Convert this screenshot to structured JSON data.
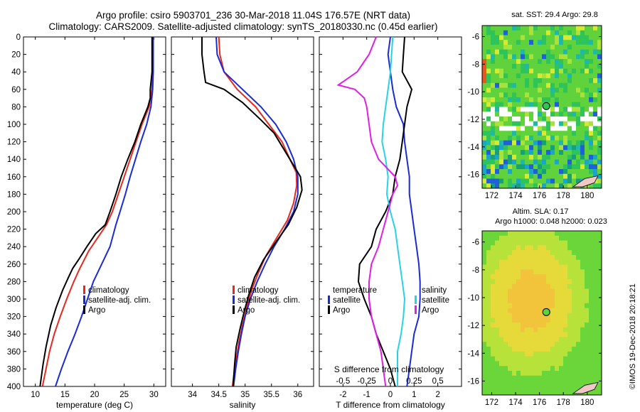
{
  "header": {
    "line1": "Argo profile: csiro 5903701_236 30-Mar-2018 11.04S 176.57E (NRT data)",
    "line2": "Climatology: CARS2009. Satellite-adjusted climatology: synTS_20180330.nc (0.45d earlier)"
  },
  "colors": {
    "climatology": "#e8281e",
    "satellite": "#1a2ad6",
    "argo": "#000000",
    "magenta": "#e11ee6",
    "cyan": "#28d2e6"
  },
  "depth_axis": {
    "ticks": [
      0,
      20,
      40,
      60,
      80,
      100,
      120,
      140,
      160,
      180,
      200,
      220,
      240,
      260,
      280,
      300,
      320,
      340,
      360,
      380,
      400
    ],
    "range": [
      0,
      400
    ]
  },
  "chart_data": [
    {
      "id": "temperature",
      "type": "line",
      "xlabel": "temperature (deg C)",
      "ylabel": "",
      "xlim": [
        8,
        32
      ],
      "ylim": [
        400,
        0
      ],
      "xticks": [
        10,
        15,
        20,
        25,
        30
      ],
      "legend": [
        "climatology",
        "satellite-adj. clim.",
        "Argo"
      ],
      "series": [
        {
          "name": "climatology",
          "color_key": "climatology",
          "points": [
            [
              29.8,
              0
            ],
            [
              29.8,
              40
            ],
            [
              29.7,
              60
            ],
            [
              29.2,
              80
            ],
            [
              28,
              100
            ],
            [
              27,
              120
            ],
            [
              26,
              140
            ],
            [
              25,
              160
            ],
            [
              24,
              180
            ],
            [
              23,
              200
            ],
            [
              22,
              215
            ],
            [
              20.5,
              230
            ],
            [
              19,
              245
            ],
            [
              17.5,
              265
            ],
            [
              16.5,
              280
            ],
            [
              15.3,
              300
            ],
            [
              14.2,
              320
            ],
            [
              13.2,
              340
            ],
            [
              12.4,
              360
            ],
            [
              11.8,
              380
            ],
            [
              11.2,
              400
            ]
          ]
        },
        {
          "name": "satellite-adj. clim.",
          "color_key": "satellite",
          "points": [
            [
              29.9,
              0
            ],
            [
              29.9,
              40
            ],
            [
              29.8,
              60
            ],
            [
              29.5,
              80
            ],
            [
              28.8,
              100
            ],
            [
              27.8,
              120
            ],
            [
              26.9,
              140
            ],
            [
              26,
              160
            ],
            [
              25.2,
              180
            ],
            [
              24.3,
              200
            ],
            [
              23.6,
              215
            ],
            [
              22.6,
              240
            ],
            [
              21.2,
              260
            ],
            [
              19.8,
              280
            ],
            [
              18.8,
              300
            ],
            [
              17.8,
              320
            ],
            [
              16.7,
              340
            ],
            [
              15.5,
              360
            ],
            [
              14.4,
              380
            ],
            [
              13.4,
              400
            ]
          ]
        },
        {
          "name": "Argo",
          "color_key": "argo",
          "points": [
            [
              29.7,
              0
            ],
            [
              29.7,
              40
            ],
            [
              29.4,
              60
            ],
            [
              29.4,
              70
            ],
            [
              29,
              80
            ],
            [
              27.8,
              100
            ],
            [
              26.8,
              120
            ],
            [
              25.6,
              140
            ],
            [
              24.5,
              160
            ],
            [
              23.6,
              180
            ],
            [
              22.6,
              200
            ],
            [
              21.8,
              215
            ],
            [
              20.2,
              225
            ],
            [
              18.7,
              240
            ],
            [
              17.3,
              255
            ],
            [
              16.3,
              265
            ],
            [
              15.6,
              275
            ],
            [
              14.6,
              290
            ],
            [
              13.5,
              310
            ],
            [
              12.6,
              330
            ],
            [
              11.8,
              355
            ],
            [
              11.3,
              375
            ],
            [
              10.8,
              400
            ]
          ]
        }
      ]
    },
    {
      "id": "salinity",
      "type": "line",
      "xlabel": "salinity",
      "ylabel": "",
      "xlim": [
        33.6,
        36.3
      ],
      "ylim": [
        400,
        0
      ],
      "xticks": [
        34,
        34.5,
        35,
        35.5,
        36
      ],
      "legend": [
        "climatology",
        "satellite-adj. clim.",
        "Argo"
      ],
      "series": [
        {
          "name": "climatology",
          "color_key": "climatology",
          "points": [
            [
              34.5,
              0
            ],
            [
              34.52,
              20
            ],
            [
              34.6,
              40
            ],
            [
              34.85,
              60
            ],
            [
              35.2,
              80
            ],
            [
              35.45,
              100
            ],
            [
              35.7,
              120
            ],
            [
              35.85,
              140
            ],
            [
              35.97,
              155
            ],
            [
              35.98,
              170
            ],
            [
              35.92,
              190
            ],
            [
              35.8,
              210
            ],
            [
              35.6,
              230
            ],
            [
              35.4,
              250
            ],
            [
              35.25,
              270
            ],
            [
              35.12,
              290
            ],
            [
              35.03,
              310
            ],
            [
              34.95,
              330
            ],
            [
              34.88,
              350
            ],
            [
              34.83,
              370
            ],
            [
              34.78,
              390
            ],
            [
              34.76,
              400
            ]
          ]
        },
        {
          "name": "satellite-adj. clim.",
          "color_key": "satellite",
          "points": [
            [
              34.45,
              0
            ],
            [
              34.47,
              20
            ],
            [
              34.6,
              40
            ],
            [
              34.95,
              60
            ],
            [
              35.3,
              80
            ],
            [
              35.58,
              100
            ],
            [
              35.78,
              120
            ],
            [
              35.92,
              140
            ],
            [
              36.0,
              160
            ],
            [
              36.0,
              180
            ],
            [
              35.92,
              200
            ],
            [
              35.75,
              220
            ],
            [
              35.55,
              240
            ],
            [
              35.38,
              260
            ],
            [
              35.23,
              280
            ],
            [
              35.1,
              300
            ],
            [
              35.0,
              320
            ],
            [
              34.93,
              340
            ],
            [
              34.87,
              360
            ],
            [
              34.82,
              380
            ],
            [
              34.78,
              400
            ]
          ]
        },
        {
          "name": "Argo",
          "color_key": "argo",
          "points": [
            [
              34.18,
              0
            ],
            [
              34.18,
              20
            ],
            [
              34.22,
              40
            ],
            [
              34.25,
              52
            ],
            [
              34.6,
              60
            ],
            [
              34.95,
              75
            ],
            [
              35.3,
              95
            ],
            [
              35.55,
              110
            ],
            [
              35.7,
              125
            ],
            [
              35.85,
              140
            ],
            [
              36.05,
              160
            ],
            [
              36.08,
              175
            ],
            [
              35.98,
              195
            ],
            [
              35.82,
              215
            ],
            [
              35.58,
              235
            ],
            [
              35.35,
              255
            ],
            [
              35.18,
              275
            ],
            [
              35.07,
              295
            ],
            [
              34.98,
              315
            ],
            [
              34.9,
              335
            ],
            [
              34.83,
              355
            ],
            [
              34.8,
              375
            ],
            [
              34.77,
              400
            ]
          ]
        }
      ]
    },
    {
      "id": "difference",
      "type": "line",
      "xlabel": "T difference from climatology",
      "x2label": "S difference from climatology",
      "ylabel": "",
      "xlim": [
        -3,
        3
      ],
      "ylim": [
        400,
        0
      ],
      "xticks": [
        -2,
        -1,
        0,
        1,
        2
      ],
      "x2ticks": [
        "-0.5",
        "-0.25",
        "0",
        "0.25",
        "0.5"
      ],
      "legend_left": {
        "title": "temperature",
        "items": [
          "satellite",
          "Argo"
        ]
      },
      "legend_right": {
        "title": "salinity",
        "items": [
          "satellite",
          "Argo"
        ]
      },
      "series": [
        {
          "name": "temperature satellite",
          "color_key": "satellite",
          "points": [
            [
              0.0,
              0
            ],
            [
              -0.1,
              20
            ],
            [
              0,
              40
            ],
            [
              0.1,
              60
            ],
            [
              0.25,
              80
            ],
            [
              0.55,
              100
            ],
            [
              0.6,
              120
            ],
            [
              0.7,
              140
            ],
            [
              0.8,
              160
            ],
            [
              0.8,
              180
            ],
            [
              0.9,
              200
            ],
            [
              1.0,
              220
            ],
            [
              1.1,
              240
            ],
            [
              1.2,
              260
            ],
            [
              1.25,
              280
            ],
            [
              1.25,
              300
            ],
            [
              1.2,
              320
            ],
            [
              1.0,
              340
            ],
            [
              0.9,
              360
            ],
            [
              0.8,
              380
            ],
            [
              0.7,
              400
            ]
          ]
        },
        {
          "name": "temperature Argo",
          "color_key": "argo",
          "points": [
            [
              0.6,
              0
            ],
            [
              0.55,
              20
            ],
            [
              0.5,
              40
            ],
            [
              0.9,
              60
            ],
            [
              0.7,
              80
            ],
            [
              0.6,
              100
            ],
            [
              0.5,
              120
            ],
            [
              0.4,
              140
            ],
            [
              0.2,
              160
            ],
            [
              0.1,
              180
            ],
            [
              -0.2,
              200
            ],
            [
              -0.6,
              220
            ],
            [
              -0.8,
              240
            ],
            [
              -1.3,
              260
            ],
            [
              -1.35,
              280
            ],
            [
              -1.1,
              300
            ],
            [
              -0.8,
              320
            ],
            [
              -0.6,
              340
            ],
            [
              -0.3,
              360
            ],
            [
              0,
              380
            ],
            [
              0.2,
              400
            ]
          ]
        },
        {
          "name": "salinity satellite",
          "color_key": "cyan",
          "points": [
            [
              0.1,
              0
            ],
            [
              0.0,
              40
            ],
            [
              -0.1,
              60
            ],
            [
              -0.2,
              80
            ],
            [
              -0.3,
              100
            ],
            [
              -0.35,
              120
            ],
            [
              -0.2,
              140
            ],
            [
              -0.1,
              160
            ],
            [
              -0.15,
              180
            ],
            [
              0.0,
              200
            ],
            [
              0.2,
              220
            ],
            [
              0.3,
              240
            ],
            [
              0.4,
              260
            ],
            [
              0.5,
              280
            ],
            [
              0.6,
              300
            ],
            [
              0.55,
              320
            ],
            [
              0.45,
              340
            ],
            [
              0.3,
              360
            ],
            [
              0.3,
              380
            ],
            [
              0.3,
              400
            ]
          ]
        },
        {
          "name": "salinity Argo",
          "color_key": "magenta",
          "points": [
            [
              -0.6,
              0
            ],
            [
              -0.9,
              20
            ],
            [
              -1.4,
              40
            ],
            [
              -2.2,
              55
            ],
            [
              -1.5,
              60
            ],
            [
              -1.1,
              70
            ],
            [
              -1.0,
              80
            ],
            [
              -0.9,
              100
            ],
            [
              -0.8,
              120
            ],
            [
              -0.5,
              140
            ],
            [
              0.2,
              160
            ],
            [
              0.3,
              170
            ],
            [
              0.1,
              180
            ],
            [
              -0.1,
              200
            ],
            [
              -0.3,
              220
            ],
            [
              -0.5,
              240
            ],
            [
              -0.8,
              260
            ],
            [
              -0.9,
              280
            ],
            [
              -0.9,
              300
            ],
            [
              -0.8,
              320
            ],
            [
              -0.6,
              340
            ],
            [
              -0.4,
              360
            ],
            [
              -0.3,
              380
            ],
            [
              -0.2,
              400
            ]
          ]
        }
      ]
    }
  ],
  "maps": [
    {
      "id": "sst",
      "title": "sat. SST: 29.4 Argo: 29.8",
      "xticks": [
        172,
        174,
        176,
        178,
        180
      ],
      "yticks": [
        -6,
        -8,
        -10,
        -12,
        -14,
        -16
      ],
      "xlim": [
        171.2,
        181.2
      ],
      "ylim": [
        -17,
        -5.2
      ],
      "marker": [
        176.57,
        -11.04
      ]
    },
    {
      "id": "sla",
      "title1": "Altim. SLA: 0.17",
      "title2": "Argo h1000: 0.048 h2000: 0.023",
      "xticks": [
        172,
        174,
        176,
        178,
        180
      ],
      "yticks": [
        -6,
        -8,
        -10,
        -12,
        -14,
        -16
      ],
      "xlim": [
        171.2,
        181.2
      ],
      "ylim": [
        -17,
        -5.2
      ],
      "marker": [
        176.57,
        -11.04
      ]
    }
  ],
  "credit": "©IMOS 19-Dec-2018 20:18:21"
}
